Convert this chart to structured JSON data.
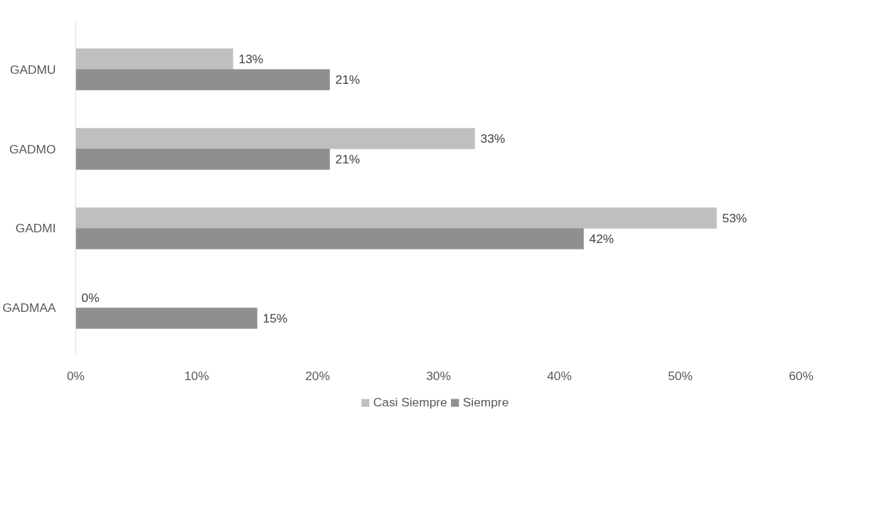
{
  "chart_data": {
    "type": "bar",
    "orientation": "horizontal",
    "categories": [
      "GADMU",
      "GADMO",
      "GADMI",
      "GADMAA"
    ],
    "series": [
      {
        "name": "Casi Siempre",
        "color": "#bfbfbf",
        "values": [
          13,
          33,
          53,
          0
        ],
        "value_labels": [
          "13%",
          "33%",
          "53%",
          "0%"
        ]
      },
      {
        "name": "Siempre",
        "color": "#8f8f8f",
        "values": [
          21,
          21,
          42,
          15
        ],
        "value_labels": [
          "21%",
          "21%",
          "42%",
          "15%"
        ]
      }
    ],
    "xlim": [
      0,
      60
    ],
    "xticks": [
      {
        "value": 0,
        "label": "0%"
      },
      {
        "value": 10,
        "label": "10%"
      },
      {
        "value": 20,
        "label": "20%"
      },
      {
        "value": 30,
        "label": "30%"
      },
      {
        "value": 40,
        "label": "40%"
      },
      {
        "value": 50,
        "label": "50%"
      },
      {
        "value": 60,
        "label": "60%"
      }
    ],
    "grid": false,
    "legend": "bottom"
  }
}
